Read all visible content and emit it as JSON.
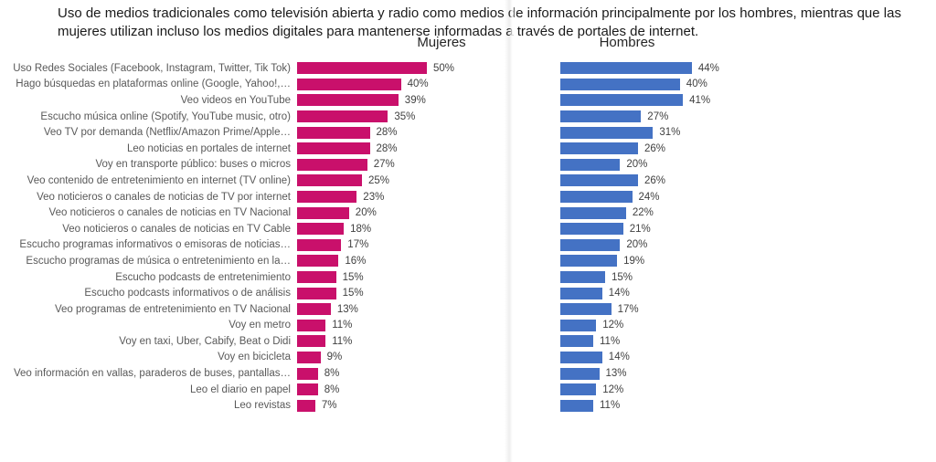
{
  "title": "Uso de medios tradicionales como televisión abierta y radio como medios de información principalmente por los hombres, mientras que las mujeres utilizan incluso los medios digitales para mantenerse informadas a través de portales de internet.",
  "chart_data": {
    "type": "bar",
    "orientation": "horizontal",
    "value_suffix": "%",
    "grid": false,
    "legend_position": "top",
    "xlim_mujeres": [
      0,
      52
    ],
    "xlim_hombres": [
      0,
      46
    ],
    "categories": [
      "Uso Redes Sociales (Facebook, Instagram, Twitter, Tik Tok)",
      "Hago búsquedas en plataformas online (Google, Yahoo!,…",
      "Veo videos en YouTube",
      "Escucho música online (Spotify, YouTube music, otro)",
      "Veo TV por demanda (Netflix/Amazon Prime/Apple…",
      "Leo noticias en portales de internet",
      "Voy en transporte público: buses o micros",
      "Veo contenido de entretenimiento en internet (TV online)",
      "Veo noticieros o canales de noticias de TV por internet",
      "Veo noticieros o canales de noticias en TV Nacional",
      "Veo noticieros o canales de noticias en TV Cable",
      "Escucho programas informativos o emisoras de noticias…",
      "Escucho programas de música o entretenimiento en la…",
      "Escucho podcasts de entretenimiento",
      "Escucho podcasts informativos o de análisis",
      "Veo programas de entretenimiento en TV Nacional",
      "Voy en metro",
      "Voy en taxi, Uber, Cabify, Beat o Didi",
      "Voy en bicicleta",
      "Veo información en vallas, paraderos de buses, pantallas…",
      "Leo el diario en papel",
      "Leo revistas"
    ],
    "series": [
      {
        "name": "Mujeres",
        "color": "#C9106B",
        "values": [
          50,
          40,
          39,
          35,
          28,
          28,
          27,
          25,
          23,
          20,
          18,
          17,
          16,
          15,
          15,
          13,
          11,
          11,
          9,
          8,
          8,
          7
        ]
      },
      {
        "name": "Hombres",
        "color": "#4472C4",
        "values": [
          44,
          40,
          41,
          27,
          31,
          26,
          20,
          26,
          24,
          22,
          21,
          20,
          19,
          15,
          14,
          17,
          12,
          11,
          14,
          13,
          12,
          11
        ]
      }
    ]
  }
}
